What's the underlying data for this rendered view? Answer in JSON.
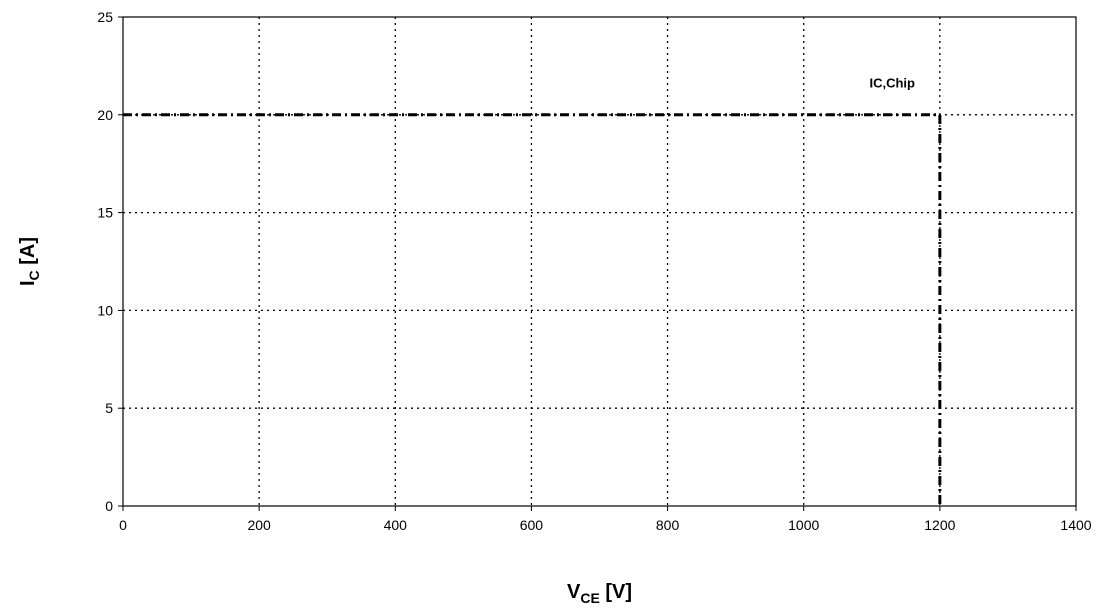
{
  "chart_data": {
    "type": "line",
    "title": "",
    "xlabel": {
      "main": "V",
      "sub": "CE",
      "unit": " [V]"
    },
    "ylabel": {
      "main": "I",
      "sub": "C",
      "unit": " [A]"
    },
    "xlim": [
      0,
      1400
    ],
    "ylim": [
      0,
      25
    ],
    "x_ticks": [
      0,
      200,
      400,
      600,
      800,
      1000,
      1200,
      1400
    ],
    "y_ticks": [
      0,
      5,
      10,
      15,
      20,
      25
    ],
    "grid": true,
    "series": [
      {
        "name": "IC,Chip",
        "x": [
          0,
          1200,
          1200
        ],
        "y": [
          20,
          20,
          0
        ]
      }
    ],
    "annotations": [
      {
        "text": "IC,Chip",
        "x": 1130,
        "y": 21.4
      }
    ]
  }
}
